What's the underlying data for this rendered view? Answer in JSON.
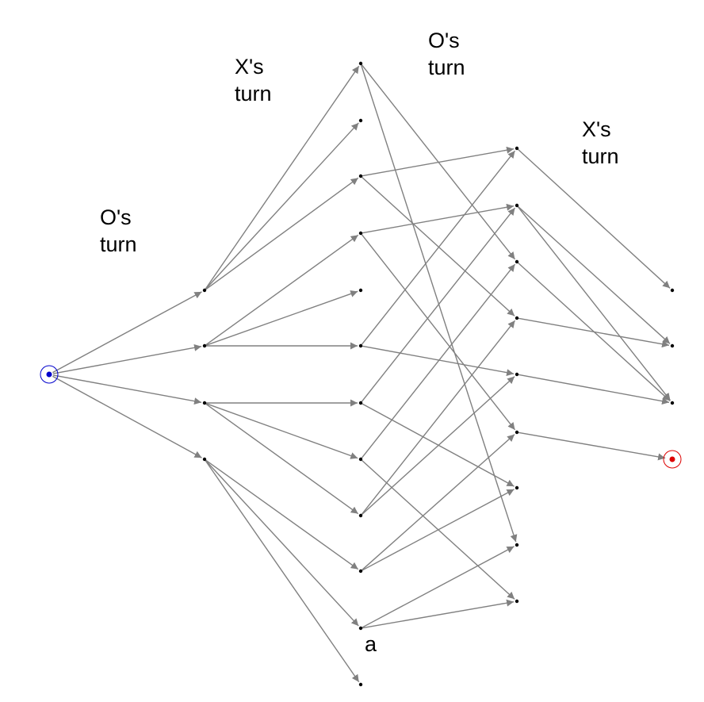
{
  "labels": {
    "o_turn_left": "O's\nturn",
    "x_turn_upper": "X's\nturn",
    "o_turn_right": "O's\nturn",
    "x_turn_right": "X's\nturn",
    "node_a": "a"
  },
  "colors": {
    "edge": "#808080",
    "node": "#000000",
    "start": "#0000cc",
    "goal": "#dd0000"
  }
}
